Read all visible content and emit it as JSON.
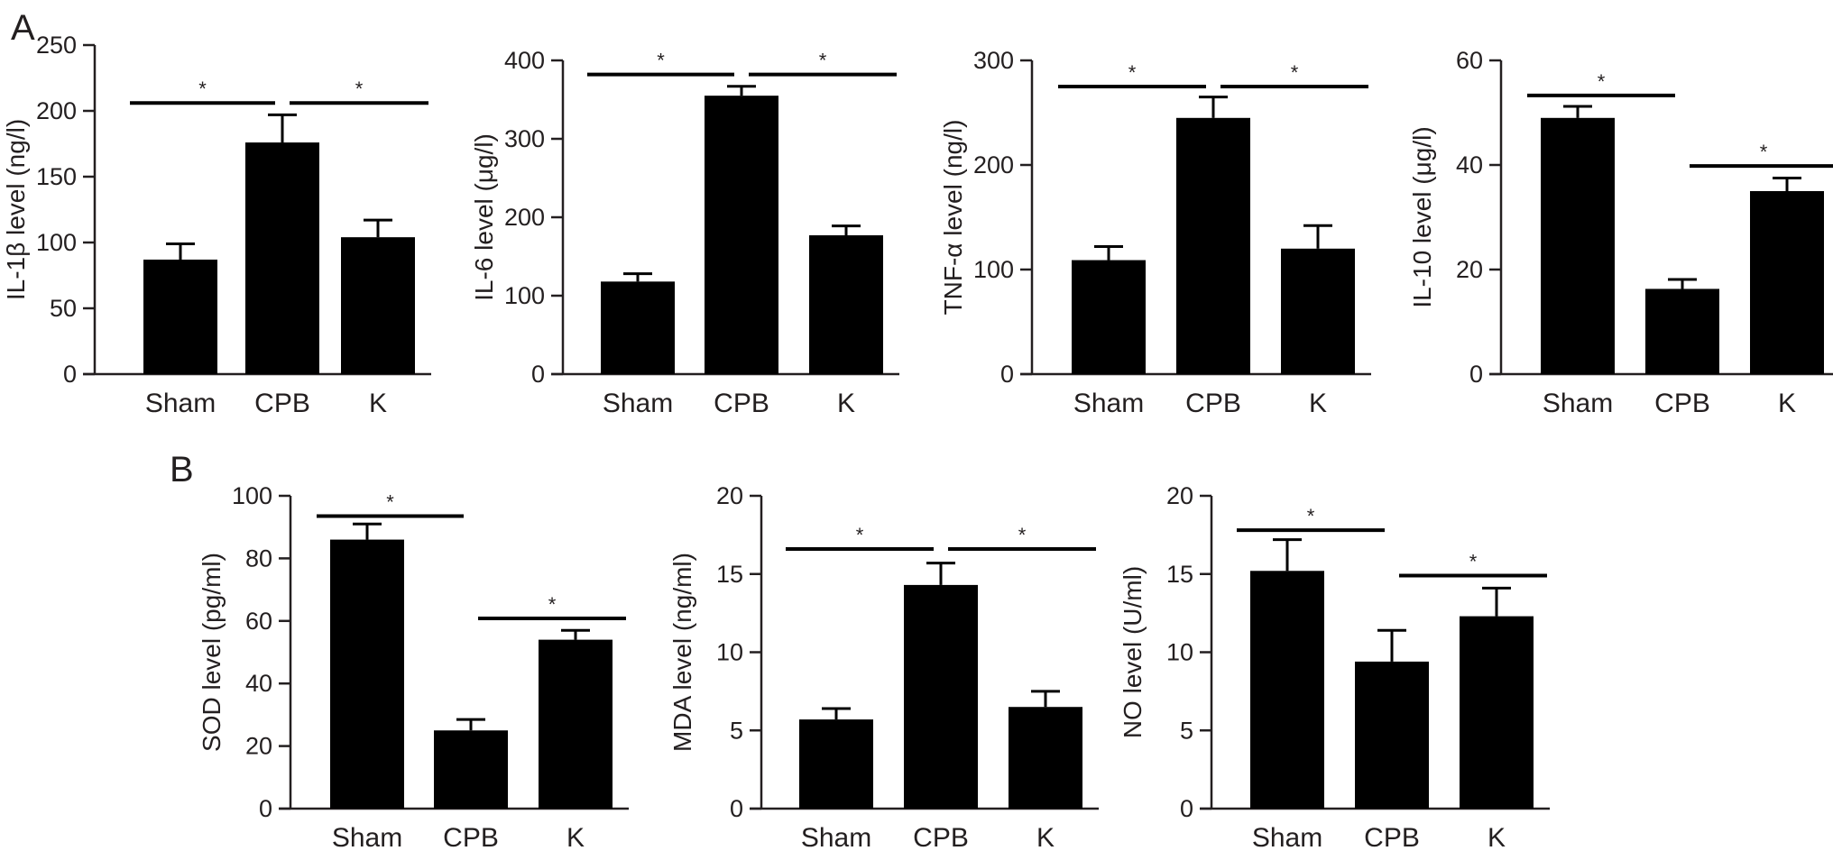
{
  "figure": {
    "panel_labels": [
      "A",
      "B"
    ]
  },
  "colors": {
    "bar": "#000000",
    "axis": "#231f20",
    "text": "#231f20"
  },
  "chart_data": [
    {
      "panel": "A",
      "type": "bar",
      "ylabel": "IL-1β level (ng/l)",
      "categories": [
        "Sham",
        "CPB",
        "K"
      ],
      "values": [
        87,
        176,
        104
      ],
      "errors": [
        12,
        21,
        13
      ],
      "ylim": [
        0,
        250
      ],
      "yticks": [
        0,
        50,
        100,
        150,
        200,
        250
      ],
      "significance": [
        {
          "from": 0,
          "to": 1,
          "y": 206,
          "label": "*"
        },
        {
          "from": 1,
          "to": 2,
          "y": 206,
          "label": "*"
        }
      ]
    },
    {
      "panel": "A",
      "type": "bar",
      "ylabel": "IL-6 level (μg/l)",
      "categories": [
        "Sham",
        "CPB",
        "K"
      ],
      "values": [
        118,
        355,
        177
      ],
      "errors": [
        10,
        12,
        12
      ],
      "ylim": [
        0,
        400
      ],
      "yticks": [
        0,
        100,
        200,
        300,
        400
      ],
      "significance": [
        {
          "from": 0,
          "to": 1,
          "y": 382,
          "label": "*"
        },
        {
          "from": 1,
          "to": 2,
          "y": 382,
          "label": "*"
        }
      ]
    },
    {
      "panel": "A",
      "type": "bar",
      "ylabel": "TNF-α level (ng/l)",
      "categories": [
        "Sham",
        "CPB",
        "K"
      ],
      "values": [
        109,
        245,
        120
      ],
      "errors": [
        13,
        20,
        22
      ],
      "ylim": [
        0,
        300
      ],
      "yticks": [
        0,
        100,
        200,
        300
      ],
      "significance": [
        {
          "from": 0,
          "to": 1,
          "y": 275,
          "label": "*"
        },
        {
          "from": 1,
          "to": 2,
          "y": 275,
          "label": "*"
        }
      ]
    },
    {
      "panel": "A",
      "type": "bar",
      "ylabel": "IL-10 level (μg/l)",
      "categories": [
        "Sham",
        "CPB",
        "K"
      ],
      "values": [
        49,
        16.3,
        35
      ],
      "errors": [
        2.2,
        1.8,
        2.5
      ],
      "ylim": [
        0,
        60
      ],
      "yticks": [
        0,
        20,
        40,
        60
      ],
      "significance": [
        {
          "from": 0,
          "to": 1,
          "y": 53.3,
          "label": "*"
        },
        {
          "from": 1,
          "to": 2,
          "y": 39.8,
          "label": "*"
        }
      ]
    },
    {
      "panel": "B",
      "type": "bar",
      "ylabel": "SOD level (pg/ml)",
      "categories": [
        "Sham",
        "CPB",
        "K"
      ],
      "values": [
        86,
        25,
        54
      ],
      "errors": [
        5,
        3.5,
        3
      ],
      "ylim": [
        0,
        100
      ],
      "yticks": [
        0,
        20,
        40,
        60,
        80,
        100
      ],
      "significance": [
        {
          "from": 0,
          "to": 1,
          "y": 93.5,
          "label": "*"
        },
        {
          "from": 1,
          "to": 2,
          "y": 60.8,
          "label": "*"
        }
      ]
    },
    {
      "panel": "B",
      "type": "bar",
      "ylabel": "MDA level (ng/ml)",
      "categories": [
        "Sham",
        "CPB",
        "K"
      ],
      "values": [
        5.7,
        14.3,
        6.5
      ],
      "errors": [
        0.7,
        1.4,
        1.0
      ],
      "ylim": [
        0,
        20
      ],
      "yticks": [
        0,
        5,
        10,
        15,
        20
      ],
      "significance": [
        {
          "from": 0,
          "to": 1,
          "y": 16.6,
          "label": "*"
        },
        {
          "from": 1,
          "to": 2,
          "y": 16.6,
          "label": "*"
        }
      ]
    },
    {
      "panel": "B",
      "type": "bar",
      "ylabel": "NO level (U/ml)",
      "categories": [
        "Sham",
        "CPB",
        "K"
      ],
      "values": [
        15.2,
        9.4,
        12.3
      ],
      "errors": [
        2.0,
        2.0,
        1.8
      ],
      "ylim": [
        0,
        20
      ],
      "yticks": [
        0,
        5,
        10,
        15,
        20
      ],
      "significance": [
        {
          "from": 0,
          "to": 1,
          "y": 17.8,
          "label": "*"
        },
        {
          "from": 1,
          "to": 2,
          "y": 14.9,
          "label": "*"
        }
      ]
    }
  ]
}
